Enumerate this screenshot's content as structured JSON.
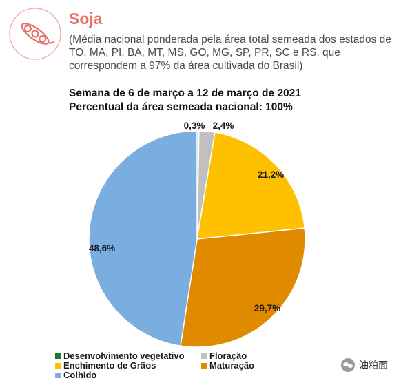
{
  "header": {
    "title": "Soja",
    "subtitle": "(Média nacional ponderada pela área total semeada dos estados de TO, MA, PI, BA, MT, MS, GO, MG, SP, PR, SC e RS, que correspondem a 97% da área cultivada do Brasil)",
    "week_line1": "Semana de 6 de março a 12 de março de 2021",
    "week_line2": "Percentual da área semeada nacional: 100%",
    "logo_icon": "soybean-pod-icon"
  },
  "chart_data": {
    "type": "pie",
    "title": "Semana de 6 de março a 12 de março de 2021",
    "subtitle": "Percentual da área semeada nacional: 100%",
    "start": "top, clockwise",
    "legend_position": "bottom",
    "slices": [
      {
        "name": "Desenvolvimento vegetativo",
        "value": 0.3,
        "label": "0,3%",
        "color": "#1a7a2e"
      },
      {
        "name": "Floração",
        "value": 2.4,
        "label": "2,4%",
        "color": "#c0c0c0"
      },
      {
        "name": "Enchimento de Grãos",
        "value": 21.2,
        "label": "21,2%",
        "color": "#ffc000"
      },
      {
        "name": "Maturação",
        "value": 29.7,
        "label": "29,7%",
        "color": "#e08a00"
      },
      {
        "name": "Colhido",
        "value": 48.6,
        "label": "48,6%",
        "color": "#7aaee0"
      }
    ]
  },
  "watermark": {
    "text": "油粕面",
    "icon": "wechat-icon"
  }
}
